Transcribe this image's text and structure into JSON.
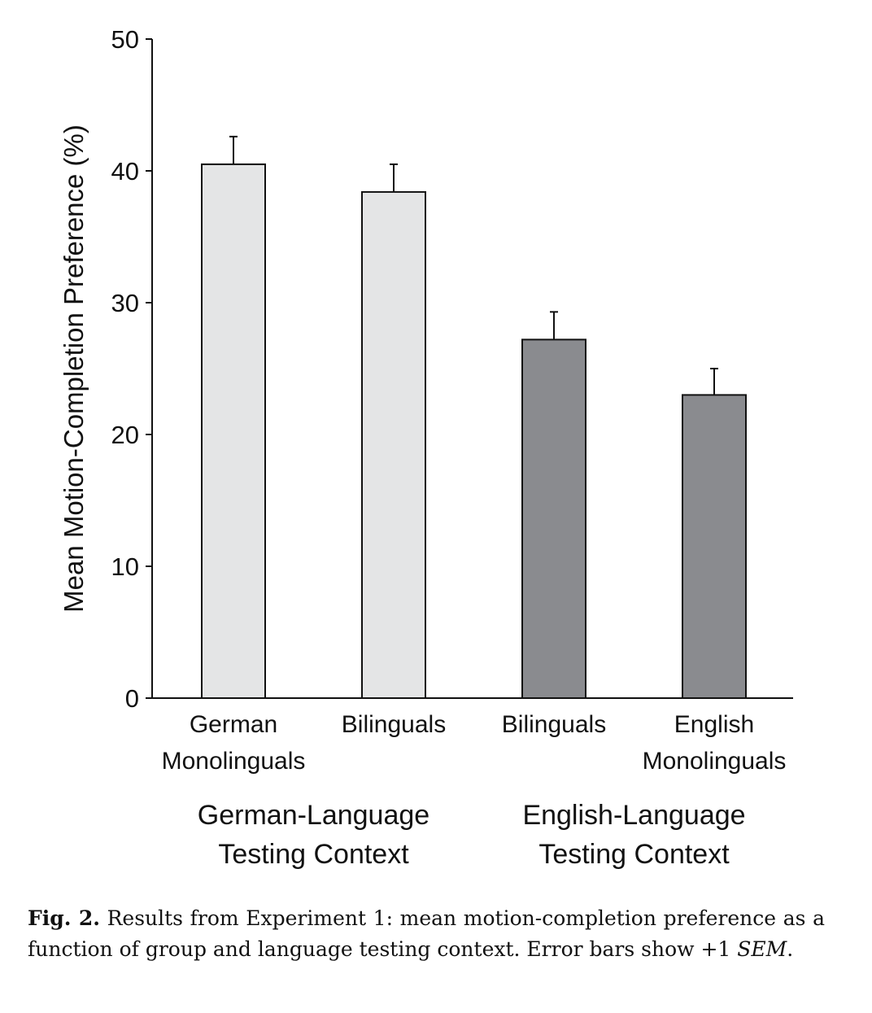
{
  "chart_data": {
    "type": "bar",
    "title": "",
    "ylabel": "Mean Motion-Completion Preference (%)",
    "xlabel": "",
    "ylim": [
      0,
      50
    ],
    "yticks": [
      0,
      10,
      20,
      30,
      40,
      50
    ],
    "grid": false,
    "categories": [
      "German\nMonolinguals",
      "Bilinguals",
      "Bilinguals",
      "English\nMonolinguals"
    ],
    "values": [
      40.5,
      38.4,
      27.2,
      23.0
    ],
    "error_upper": [
      2.1,
      2.1,
      2.1,
      2.0
    ],
    "bar_colors": [
      "#e4e5e6",
      "#e4e5e6",
      "#8a8b8f",
      "#8a8b8f"
    ],
    "groups": [
      {
        "label": "German-Language\nTesting Context",
        "categories": [
          0,
          1
        ]
      },
      {
        "label": "English-Language\nTesting Context",
        "categories": [
          2,
          3
        ]
      }
    ]
  },
  "caption": {
    "fig_label": "Fig. 2.",
    "text_before": " Results from Experiment 1: mean motion-completion preference as a function of group and language testing context. Error bars show +1 ",
    "sem": "SEM",
    "text_after": "."
  }
}
